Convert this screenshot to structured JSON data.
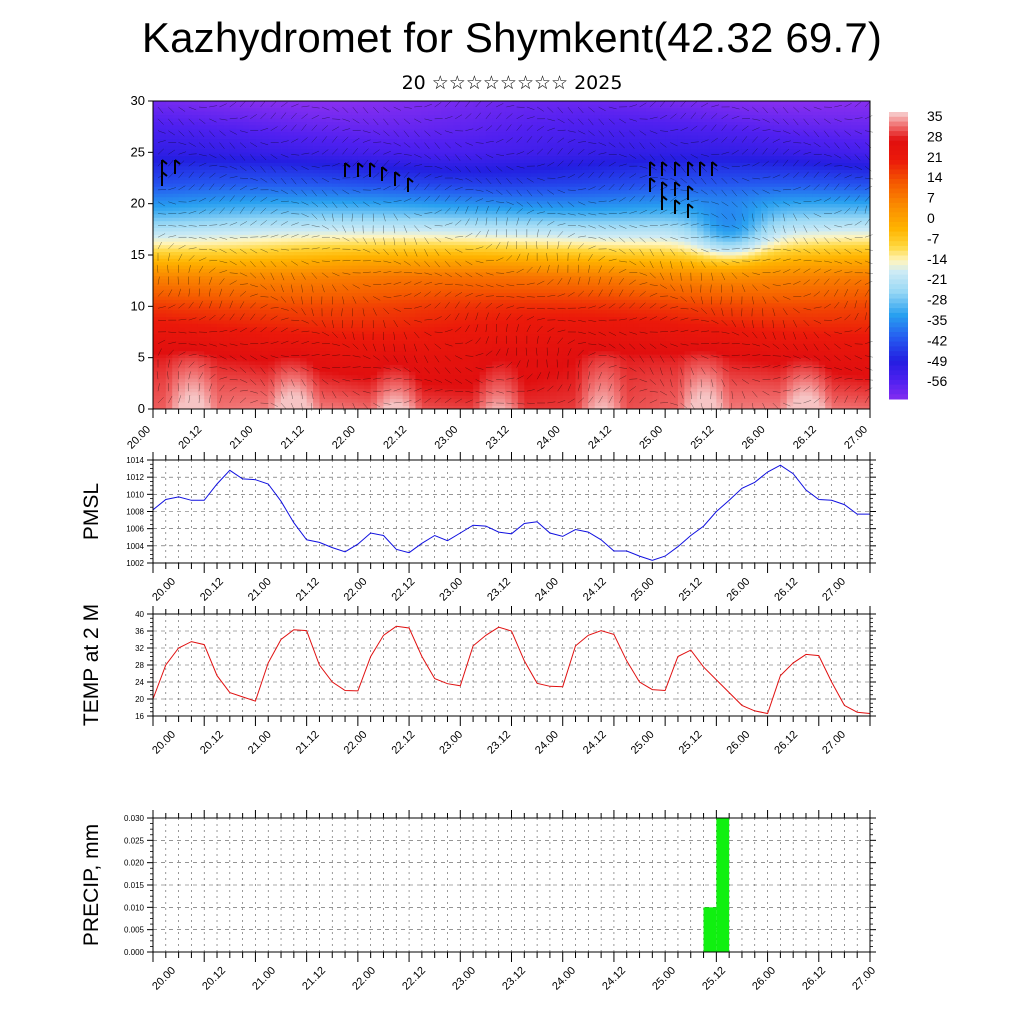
{
  "title": "Kazhydromet for Shymkent(42.32 69.7)",
  "subtitle": "20 ☆☆☆☆☆☆☆☆ 2025",
  "time_labels": [
    "20.00",
    "20.12",
    "21.00",
    "21.12",
    "22.00",
    "22.12",
    "23.00",
    "23.12",
    "24.00",
    "24.12",
    "25.00",
    "25.12",
    "26.00",
    "26.12",
    "27.00"
  ],
  "chart_data": [
    {
      "type": "heatmap",
      "name": "cross-section",
      "x": [
        "20.00",
        "20.12",
        "21.00",
        "21.12",
        "22.00",
        "22.12",
        "23.00",
        "23.12",
        "24.00",
        "24.12",
        "25.00",
        "25.12",
        "26.00",
        "26.12",
        "27.00"
      ],
      "ylim": [
        0,
        30
      ],
      "yticks": [
        "0",
        "5",
        "10",
        "15",
        "20",
        "25",
        "30"
      ],
      "colorbar": {
        "labels": [
          "35",
          "28",
          "21",
          "14",
          "7",
          "0",
          "-7",
          "-14",
          "-21",
          "-28",
          "-35",
          "-42",
          "-49",
          "-56"
        ],
        "colors": [
          "#f4c6c6",
          "#f06060",
          "#e81010",
          "#f03a00",
          "#f56b00",
          "#fb9a00",
          "#ffc400",
          "#fff0a0",
          "#bfe6f7",
          "#2ab0f0",
          "#2560f0",
          "#2020e0",
          "#5020f0",
          "#8a30f0"
        ]
      },
      "temperature_levels": [
        {
          "height": 0,
          "value": 33
        },
        {
          "height": 5,
          "value": 28
        },
        {
          "height": 10,
          "value": 18
        },
        {
          "height": 13,
          "value": 8
        },
        {
          "height": 16,
          "value": -10
        },
        {
          "height": 19,
          "value": -28
        },
        {
          "height": 22,
          "value": -42
        },
        {
          "height": 25,
          "value": -52
        },
        {
          "height": 30,
          "value": -60
        }
      ]
    },
    {
      "type": "line",
      "ylabel": "PMSL",
      "ylim": [
        1002,
        1014
      ],
      "yticks": [
        "1002",
        "1004",
        "1006",
        "1008",
        "1010",
        "1012",
        "1014"
      ],
      "color": "#1010e0",
      "step_hours": 3,
      "values": [
        1008.2,
        1009.4,
        1009.7,
        1009.3,
        1009.3,
        1011.2,
        1012.8,
        1011.8,
        1011.7,
        1011.2,
        1009.2,
        1006.7,
        1004.7,
        1004.4,
        1003.8,
        1003.3,
        1004.2,
        1005.5,
        1005.2,
        1003.6,
        1003.2,
        1004.3,
        1005.2,
        1004.6,
        1005.5,
        1006.4,
        1006.3,
        1005.6,
        1005.4,
        1006.6,
        1006.8,
        1005.5,
        1005.1,
        1005.9,
        1005.6,
        1004.7,
        1003.4,
        1003.4,
        1002.8,
        1002.3,
        1002.8,
        1003.9,
        1005.2,
        1006.3,
        1008.0,
        1009.3,
        1010.7,
        1011.4,
        1012.6,
        1013.4,
        1012.4,
        1010.5,
        1009.4,
        1009.3,
        1008.8,
        1007.7,
        1007.7
      ]
    },
    {
      "type": "line",
      "ylabel": "TEMP at 2 M",
      "ylim": [
        16,
        40
      ],
      "yticks": [
        "16",
        "20",
        "24",
        "28",
        "32",
        "36",
        "40"
      ],
      "color": "#e01010",
      "step_hours": 3,
      "values": [
        20,
        28,
        32,
        33.5,
        32.8,
        25.5,
        21.5,
        20.5,
        19.5,
        28.5,
        34,
        36.3,
        36.1,
        28,
        24,
        22,
        21.9,
        30,
        35,
        37.1,
        36.7,
        30,
        24.8,
        23.6,
        23.1,
        32.5,
        35,
        36.9,
        36,
        29,
        23.7,
        23,
        22.9,
        32.5,
        35,
        36.1,
        35.2,
        29,
        24,
        22.2,
        22,
        30,
        31.5,
        27.5,
        24.5,
        21.5,
        18.5,
        17.2,
        16.6,
        25.5,
        28.5,
        30.5,
        30.2,
        24,
        18.5,
        16.9,
        16.6
      ]
    },
    {
      "type": "bar",
      "ylabel": "PRECIP, mm",
      "ylim": [
        0,
        0.03
      ],
      "yticks": [
        "0.000",
        "0.005",
        "0.010",
        "0.015",
        "0.020",
        "0.025",
        "0.030"
      ],
      "color": "#10f010",
      "step_hours": 3,
      "bars": [
        {
          "index": 43,
          "value": 0.01
        },
        {
          "index": 44,
          "value": 0.03
        }
      ]
    }
  ]
}
